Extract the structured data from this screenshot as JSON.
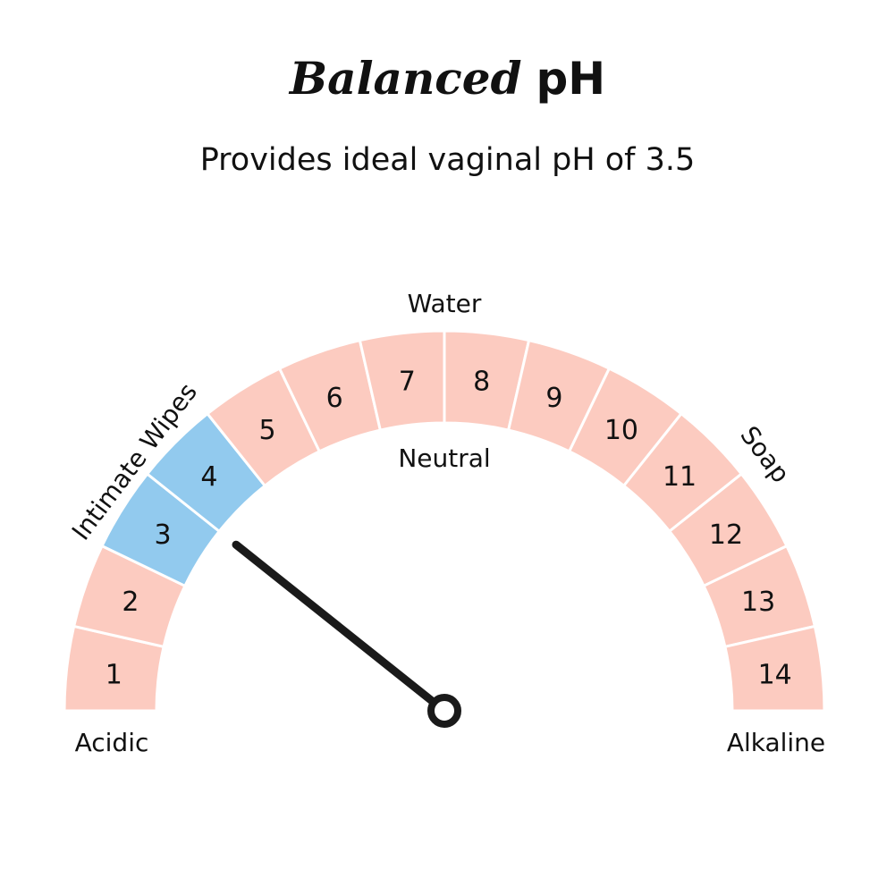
{
  "header": {
    "title_script": "Balanced",
    "title_plain": "pH",
    "subtitle": "Provides ideal vaginal pH of 3.5"
  },
  "gauge": {
    "scale": [
      "1",
      "2",
      "3",
      "4",
      "5",
      "6",
      "7",
      "8",
      "9",
      "10",
      "11",
      "12",
      "13",
      "14"
    ],
    "highlighted": [
      3,
      4
    ],
    "needle_value": 3.5,
    "labels": {
      "acidic": "Acidic",
      "alkaline": "Alkaline",
      "water": "Water",
      "neutral": "Neutral",
      "soap": "Soap",
      "intimate_wipes": "Intimate Wipes"
    },
    "colors": {
      "segment": "#fccbc0",
      "highlight": "#92caee",
      "separator": "#ffffff",
      "needle": "#1a1a1a"
    }
  }
}
